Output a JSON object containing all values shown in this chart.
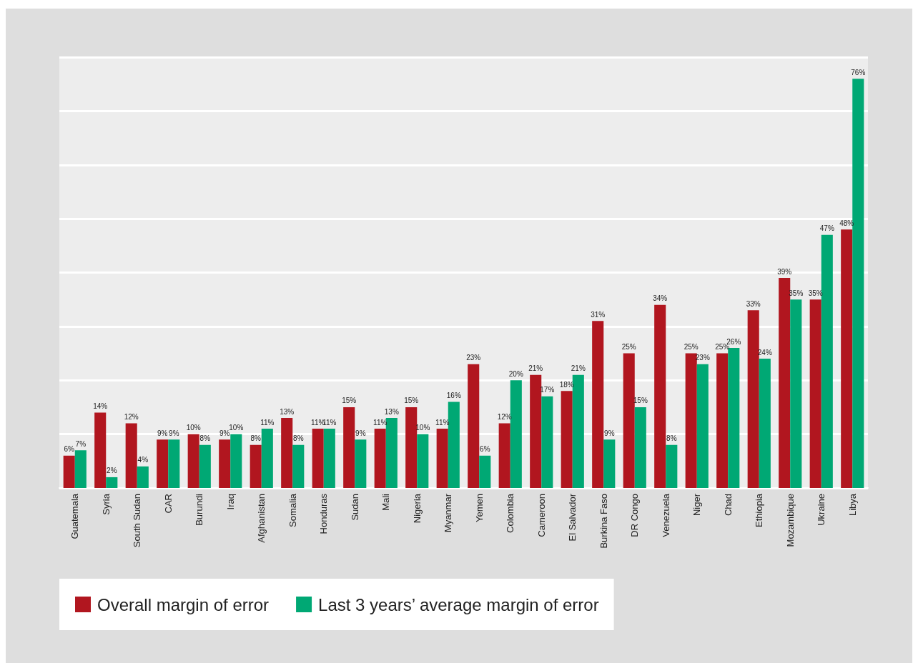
{
  "chart_data": {
    "type": "bar",
    "categories": [
      "Guatemala",
      "Syria",
      "South Sudan",
      "CAR",
      "Burundi",
      "Iraq",
      "Afghanistan",
      "Somalia",
      "Honduras",
      "Sudan",
      "Mali",
      "Nigeria",
      "Myanmar",
      "Yemen",
      "Colombia",
      "Cameroon",
      "El Salvador",
      "Burkina Faso",
      "DR Congo",
      "Venezuela",
      "Niger",
      "Chad",
      "Ethiopia",
      "Mozambique",
      "Ukraine",
      "Libya"
    ],
    "series": [
      {
        "name": "Overall margin of error",
        "color": "#b1161f",
        "values": [
          6,
          14,
          12,
          9,
          10,
          9,
          8,
          13,
          11,
          15,
          11,
          15,
          11,
          23,
          12,
          21,
          18,
          31,
          25,
          34,
          25,
          25,
          33,
          39,
          35,
          48
        ],
        "value_labels": [
          "6%",
          "14%",
          "12%",
          "9%",
          "10%",
          "9%",
          "8%",
          "13%",
          "11%",
          "15%",
          "11%",
          "15%",
          "11%",
          "23%",
          "12%",
          "21%",
          "18%",
          "31%",
          "25%",
          "34%",
          "25%",
          "25%",
          "33%",
          "39%",
          "35%",
          "48%"
        ]
      },
      {
        "name": "Last 3 years’ average margin of error",
        "color": "#00a874",
        "values": [
          7,
          2,
          4,
          9,
          8,
          10,
          11,
          8,
          11,
          9,
          13,
          10,
          16,
          6,
          20,
          17,
          21,
          9,
          15,
          8,
          23,
          26,
          24,
          35,
          47,
          76
        ],
        "value_labels": [
          "7%",
          "2%",
          "4%",
          "9%",
          "8%",
          "10%",
          "11%",
          "8%",
          "11%",
          "9%",
          "13%",
          "10%",
          "16%",
          "6%",
          "20%",
          "17%",
          "21%",
          "9%",
          "15%",
          "8%",
          "23%",
          "26%",
          "24%",
          "35%",
          "47%",
          "76%"
        ]
      }
    ],
    "ylim": [
      0,
      80
    ],
    "yticks": [
      {
        "value": 0,
        "label": null
      },
      {
        "value": 10,
        "label": null
      },
      {
        "value": 20,
        "label": null
      },
      {
        "value": 30,
        "label": null
      },
      {
        "value": 40,
        "label": null
      },
      {
        "value": 50,
        "label": null
      },
      {
        "value": 60,
        "label": null
      },
      {
        "value": 70,
        "label": null
      },
      {
        "value": 80,
        "label": null
      }
    ],
    "tick_labels": "x",
    "grid": "y",
    "legend": "bottom left"
  }
}
